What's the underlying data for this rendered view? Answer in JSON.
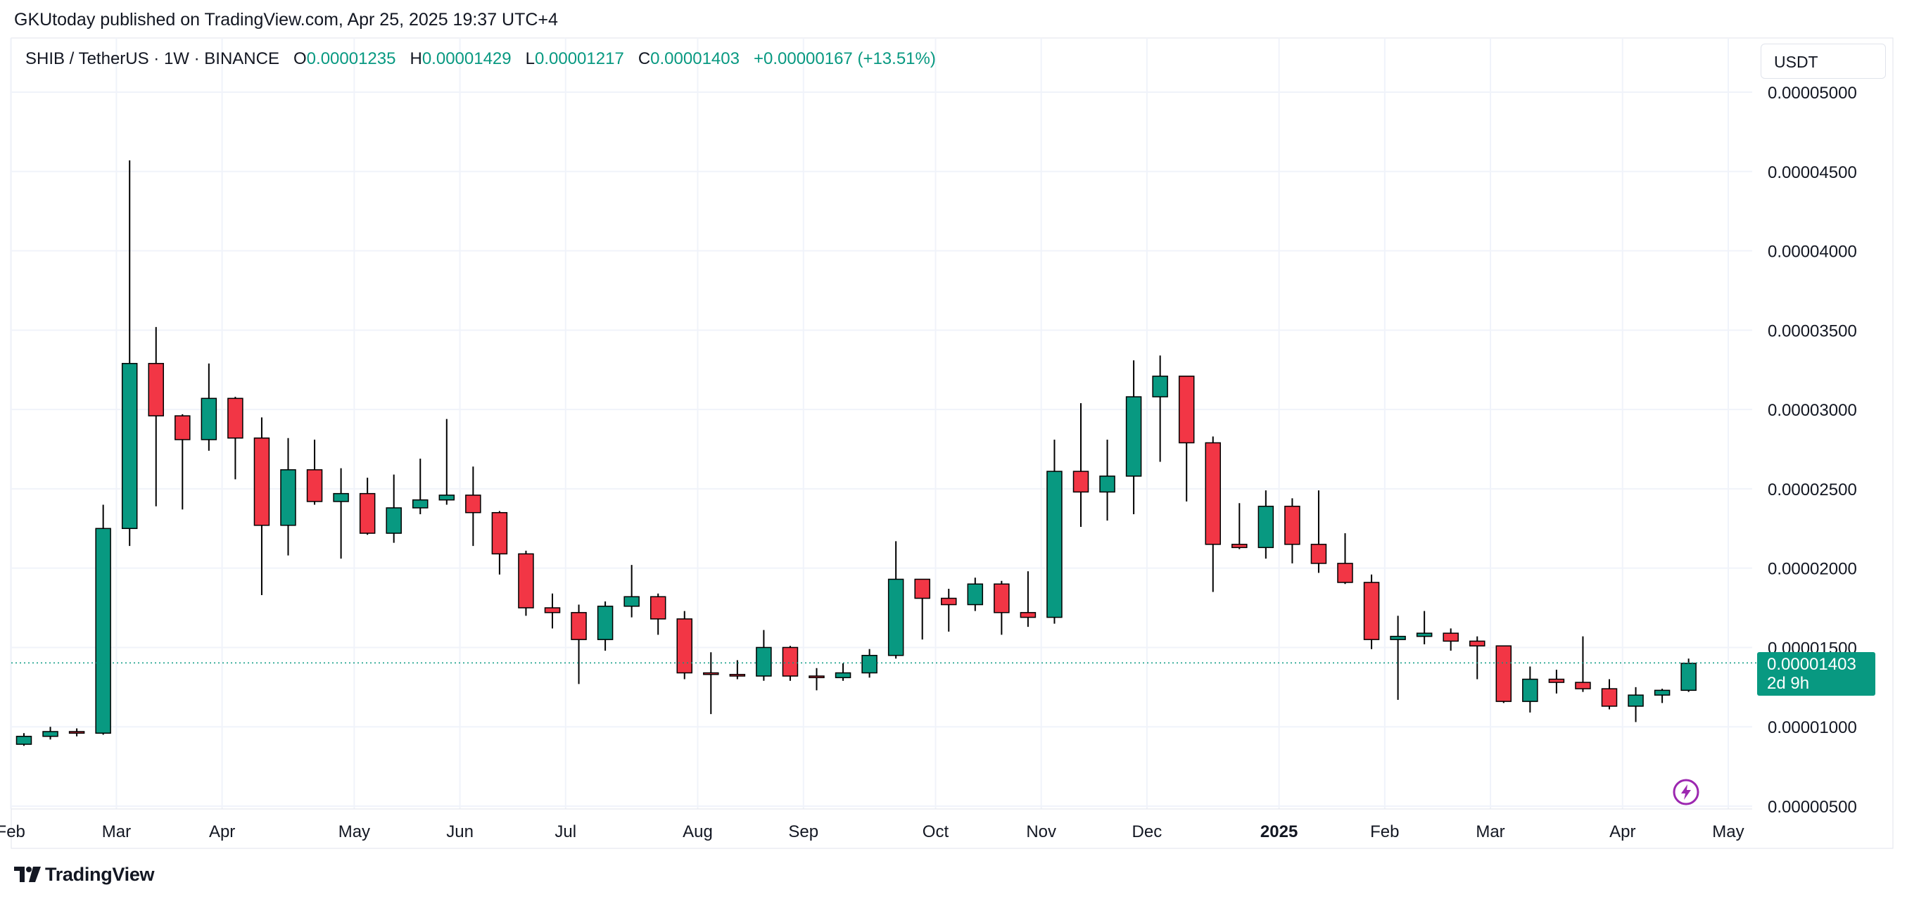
{
  "attribution": "GKUtoday published on TradingView.com, Apr 25, 2025 19:37 UTC+4",
  "legend": {
    "symbol": "SHIB / TetherUS · 1W · BINANCE",
    "open_label": "O",
    "open": "0.00001235",
    "high_label": "H",
    "high": "0.00001429",
    "low_label": "L",
    "low": "0.00001217",
    "close_label": "C",
    "close": "0.00001403",
    "change": "+0.00000167 (+13.51%)"
  },
  "currency_button": "USDT",
  "last_price": {
    "value": "0.00001403",
    "countdown": "2d 9h"
  },
  "brand": "TradingView",
  "icons": {
    "footer": "tradingview-logo-icon",
    "bolt": "lightning-icon"
  },
  "colors": {
    "up": "#089981",
    "down": "#f23645",
    "grid": "#f0f3fa",
    "text": "#131722",
    "price_line": "#089981"
  },
  "chart_data": {
    "type": "candlestick",
    "interval": "1W",
    "ylim": [
      5e-06,
      5e-05
    ],
    "y_ticks": [
      {
        "value": 5e-06,
        "label": "0.00000500"
      },
      {
        "value": 1e-05,
        "label": "0.00001000"
      },
      {
        "value": 1.5e-05,
        "label": "0.00001500"
      },
      {
        "value": 2e-05,
        "label": "0.00002000"
      },
      {
        "value": 2.5e-05,
        "label": "0.00002500"
      },
      {
        "value": 3e-05,
        "label": "0.00003000"
      },
      {
        "value": 3.5e-05,
        "label": "0.00003500"
      },
      {
        "value": 4e-05,
        "label": "0.00004000"
      },
      {
        "value": 4.5e-05,
        "label": "0.00004500"
      },
      {
        "value": 5e-05,
        "label": "0.00005000"
      }
    ],
    "x_ticks": [
      {
        "index": -0.5,
        "label": "Feb"
      },
      {
        "index": 3.5,
        "label": "Mar"
      },
      {
        "index": 7.5,
        "label": "Apr"
      },
      {
        "index": 12.5,
        "label": "May"
      },
      {
        "index": 16.5,
        "label": "Jun"
      },
      {
        "index": 20.5,
        "label": "Jul"
      },
      {
        "index": 25.5,
        "label": "Aug"
      },
      {
        "index": 29.5,
        "label": "Sep"
      },
      {
        "index": 34.5,
        "label": "Oct"
      },
      {
        "index": 38.5,
        "label": "Nov"
      },
      {
        "index": 42.5,
        "label": "Dec"
      },
      {
        "index": 47.5,
        "label": "2025",
        "bold": true
      },
      {
        "index": 51.5,
        "label": "Feb"
      },
      {
        "index": 55.5,
        "label": "Mar"
      },
      {
        "index": 60.5,
        "label": "Apr"
      },
      {
        "index": 64.5,
        "label": "May"
      }
    ],
    "candles": [
      {
        "o": 8.9e-06,
        "h": 9.6e-06,
        "l": 8.8e-06,
        "c": 9.4e-06
      },
      {
        "o": 9.4e-06,
        "h": 1e-05,
        "l": 9.2e-06,
        "c": 9.7e-06
      },
      {
        "o": 9.7e-06,
        "h": 9.9e-06,
        "l": 9.4e-06,
        "c": 9.6e-06
      },
      {
        "o": 9.6e-06,
        "h": 2.4e-05,
        "l": 9.5e-06,
        "c": 2.25e-05
      },
      {
        "o": 2.25e-05,
        "h": 4.57e-05,
        "l": 2.14e-05,
        "c": 3.29e-05
      },
      {
        "o": 3.29e-05,
        "h": 3.52e-05,
        "l": 2.39e-05,
        "c": 2.96e-05
      },
      {
        "o": 2.96e-05,
        "h": 2.97e-05,
        "l": 2.37e-05,
        "c": 2.81e-05
      },
      {
        "o": 2.81e-05,
        "h": 3.29e-05,
        "l": 2.74e-05,
        "c": 3.07e-05
      },
      {
        "o": 3.07e-05,
        "h": 3.08e-05,
        "l": 2.56e-05,
        "c": 2.82e-05
      },
      {
        "o": 2.82e-05,
        "h": 2.95e-05,
        "l": 1.83e-05,
        "c": 2.27e-05
      },
      {
        "o": 2.27e-05,
        "h": 2.82e-05,
        "l": 2.08e-05,
        "c": 2.62e-05
      },
      {
        "o": 2.62e-05,
        "h": 2.81e-05,
        "l": 2.4e-05,
        "c": 2.42e-05
      },
      {
        "o": 2.42e-05,
        "h": 2.63e-05,
        "l": 2.06e-05,
        "c": 2.47e-05
      },
      {
        "o": 2.47e-05,
        "h": 2.57e-05,
        "l": 2.21e-05,
        "c": 2.22e-05
      },
      {
        "o": 2.22e-05,
        "h": 2.59e-05,
        "l": 2.16e-05,
        "c": 2.38e-05
      },
      {
        "o": 2.38e-05,
        "h": 2.69e-05,
        "l": 2.34e-05,
        "c": 2.43e-05
      },
      {
        "o": 2.43e-05,
        "h": 2.94e-05,
        "l": 2.4e-05,
        "c": 2.46e-05
      },
      {
        "o": 2.46e-05,
        "h": 2.64e-05,
        "l": 2.14e-05,
        "c": 2.35e-05
      },
      {
        "o": 2.35e-05,
        "h": 2.36e-05,
        "l": 1.96e-05,
        "c": 2.09e-05
      },
      {
        "o": 2.09e-05,
        "h": 2.11e-05,
        "l": 1.7e-05,
        "c": 1.75e-05
      },
      {
        "o": 1.75e-05,
        "h": 1.84e-05,
        "l": 1.62e-05,
        "c": 1.72e-05
      },
      {
        "o": 1.72e-05,
        "h": 1.77e-05,
        "l": 1.27e-05,
        "c": 1.55e-05
      },
      {
        "o": 1.55e-05,
        "h": 1.79e-05,
        "l": 1.48e-05,
        "c": 1.76e-05
      },
      {
        "o": 1.76e-05,
        "h": 2.02e-05,
        "l": 1.69e-05,
        "c": 1.82e-05
      },
      {
        "o": 1.82e-05,
        "h": 1.84e-05,
        "l": 1.58e-05,
        "c": 1.68e-05
      },
      {
        "o": 1.68e-05,
        "h": 1.73e-05,
        "l": 1.3e-05,
        "c": 1.34e-05
      },
      {
        "o": 1.34e-05,
        "h": 1.47e-05,
        "l": 1.08e-05,
        "c": 1.33e-05
      },
      {
        "o": 1.33e-05,
        "h": 1.42e-05,
        "l": 1.3e-05,
        "c": 1.32e-05
      },
      {
        "o": 1.32e-05,
        "h": 1.61e-05,
        "l": 1.29e-05,
        "c": 1.5e-05
      },
      {
        "o": 1.5e-05,
        "h": 1.51e-05,
        "l": 1.29e-05,
        "c": 1.32e-05
      },
      {
        "o": 1.32e-05,
        "h": 1.37e-05,
        "l": 1.23e-05,
        "c": 1.31e-05
      },
      {
        "o": 1.31e-05,
        "h": 1.4e-05,
        "l": 1.29e-05,
        "c": 1.34e-05
      },
      {
        "o": 1.34e-05,
        "h": 1.49e-05,
        "l": 1.31e-05,
        "c": 1.45e-05
      },
      {
        "o": 1.45e-05,
        "h": 2.17e-05,
        "l": 1.43e-05,
        "c": 1.93e-05
      },
      {
        "o": 1.93e-05,
        "h": 1.93e-05,
        "l": 1.55e-05,
        "c": 1.81e-05
      },
      {
        "o": 1.81e-05,
        "h": 1.87e-05,
        "l": 1.6e-05,
        "c": 1.77e-05
      },
      {
        "o": 1.77e-05,
        "h": 1.94e-05,
        "l": 1.73e-05,
        "c": 1.9e-05
      },
      {
        "o": 1.9e-05,
        "h": 1.92e-05,
        "l": 1.58e-05,
        "c": 1.72e-05
      },
      {
        "o": 1.72e-05,
        "h": 1.98e-05,
        "l": 1.63e-05,
        "c": 1.69e-05
      },
      {
        "o": 1.69e-05,
        "h": 2.81e-05,
        "l": 1.65e-05,
        "c": 2.61e-05
      },
      {
        "o": 2.61e-05,
        "h": 3.04e-05,
        "l": 2.26e-05,
        "c": 2.48e-05
      },
      {
        "o": 2.48e-05,
        "h": 2.81e-05,
        "l": 2.3e-05,
        "c": 2.58e-05
      },
      {
        "o": 2.58e-05,
        "h": 3.31e-05,
        "l": 2.34e-05,
        "c": 3.08e-05
      },
      {
        "o": 3.08e-05,
        "h": 3.34e-05,
        "l": 2.67e-05,
        "c": 3.21e-05
      },
      {
        "o": 3.21e-05,
        "h": 3.21e-05,
        "l": 2.42e-05,
        "c": 2.79e-05
      },
      {
        "o": 2.79e-05,
        "h": 2.83e-05,
        "l": 1.85e-05,
        "c": 2.15e-05
      },
      {
        "o": 2.15e-05,
        "h": 2.41e-05,
        "l": 2.12e-05,
        "c": 2.13e-05
      },
      {
        "o": 2.13e-05,
        "h": 2.49e-05,
        "l": 2.06e-05,
        "c": 2.39e-05
      },
      {
        "o": 2.39e-05,
        "h": 2.44e-05,
        "l": 2.03e-05,
        "c": 2.15e-05
      },
      {
        "o": 2.15e-05,
        "h": 2.49e-05,
        "l": 1.97e-05,
        "c": 2.03e-05
      },
      {
        "o": 2.03e-05,
        "h": 2.22e-05,
        "l": 1.9e-05,
        "c": 1.91e-05
      },
      {
        "o": 1.91e-05,
        "h": 1.96e-05,
        "l": 1.49e-05,
        "c": 1.55e-05
      },
      {
        "o": 1.55e-05,
        "h": 1.7e-05,
        "l": 1.17e-05,
        "c": 1.57e-05
      },
      {
        "o": 1.57e-05,
        "h": 1.73e-05,
        "l": 1.52e-05,
        "c": 1.59e-05
      },
      {
        "o": 1.59e-05,
        "h": 1.62e-05,
        "l": 1.48e-05,
        "c": 1.54e-05
      },
      {
        "o": 1.54e-05,
        "h": 1.57e-05,
        "l": 1.3e-05,
        "c": 1.51e-05
      },
      {
        "o": 1.51e-05,
        "h": 1.51e-05,
        "l": 1.15e-05,
        "c": 1.16e-05
      },
      {
        "o": 1.16e-05,
        "h": 1.38e-05,
        "l": 1.09e-05,
        "c": 1.3e-05
      },
      {
        "o": 1.3e-05,
        "h": 1.36e-05,
        "l": 1.21e-05,
        "c": 1.28e-05
      },
      {
        "o": 1.28e-05,
        "h": 1.57e-05,
        "l": 1.22e-05,
        "c": 1.24e-05
      },
      {
        "o": 1.24e-05,
        "h": 1.3e-05,
        "l": 1.11e-05,
        "c": 1.13e-05
      },
      {
        "o": 1.13e-05,
        "h": 1.25e-05,
        "l": 1.03e-05,
        "c": 1.2e-05
      },
      {
        "o": 1.2e-05,
        "h": 1.24e-05,
        "l": 1.15e-05,
        "c": 1.23e-05
      },
      {
        "o": 1.23e-05,
        "h": 1.43e-05,
        "l": 1.22e-05,
        "c": 1.4e-05
      }
    ]
  }
}
